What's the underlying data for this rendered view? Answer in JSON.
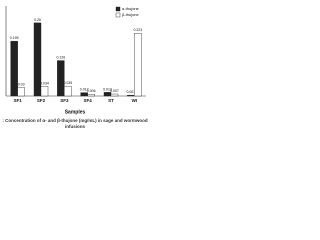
{
  "chart_data": {
    "type": "bar",
    "caption": ": Concentration of α- and β-thujone (mg/mL) in sage and wormwood infusions",
    "xlabel": "Samples",
    "categories": [
      "SF1",
      "SF2",
      "SF3",
      "SF4",
      "ST",
      "WI"
    ],
    "series": [
      {
        "name": "α-thujone",
        "color": "#222222",
        "values": [
          0.195,
          0.26,
          0.126,
          0.012,
          0.013,
          0.003
        ]
      },
      {
        "name": "β-thujone",
        "color": "#ffffff",
        "values": [
          0.03,
          0.034,
          0.035,
          0.006,
          0.007,
          0.223
        ]
      }
    ],
    "ylim": [
      0,
      0.32
    ],
    "legend": "top-right"
  }
}
